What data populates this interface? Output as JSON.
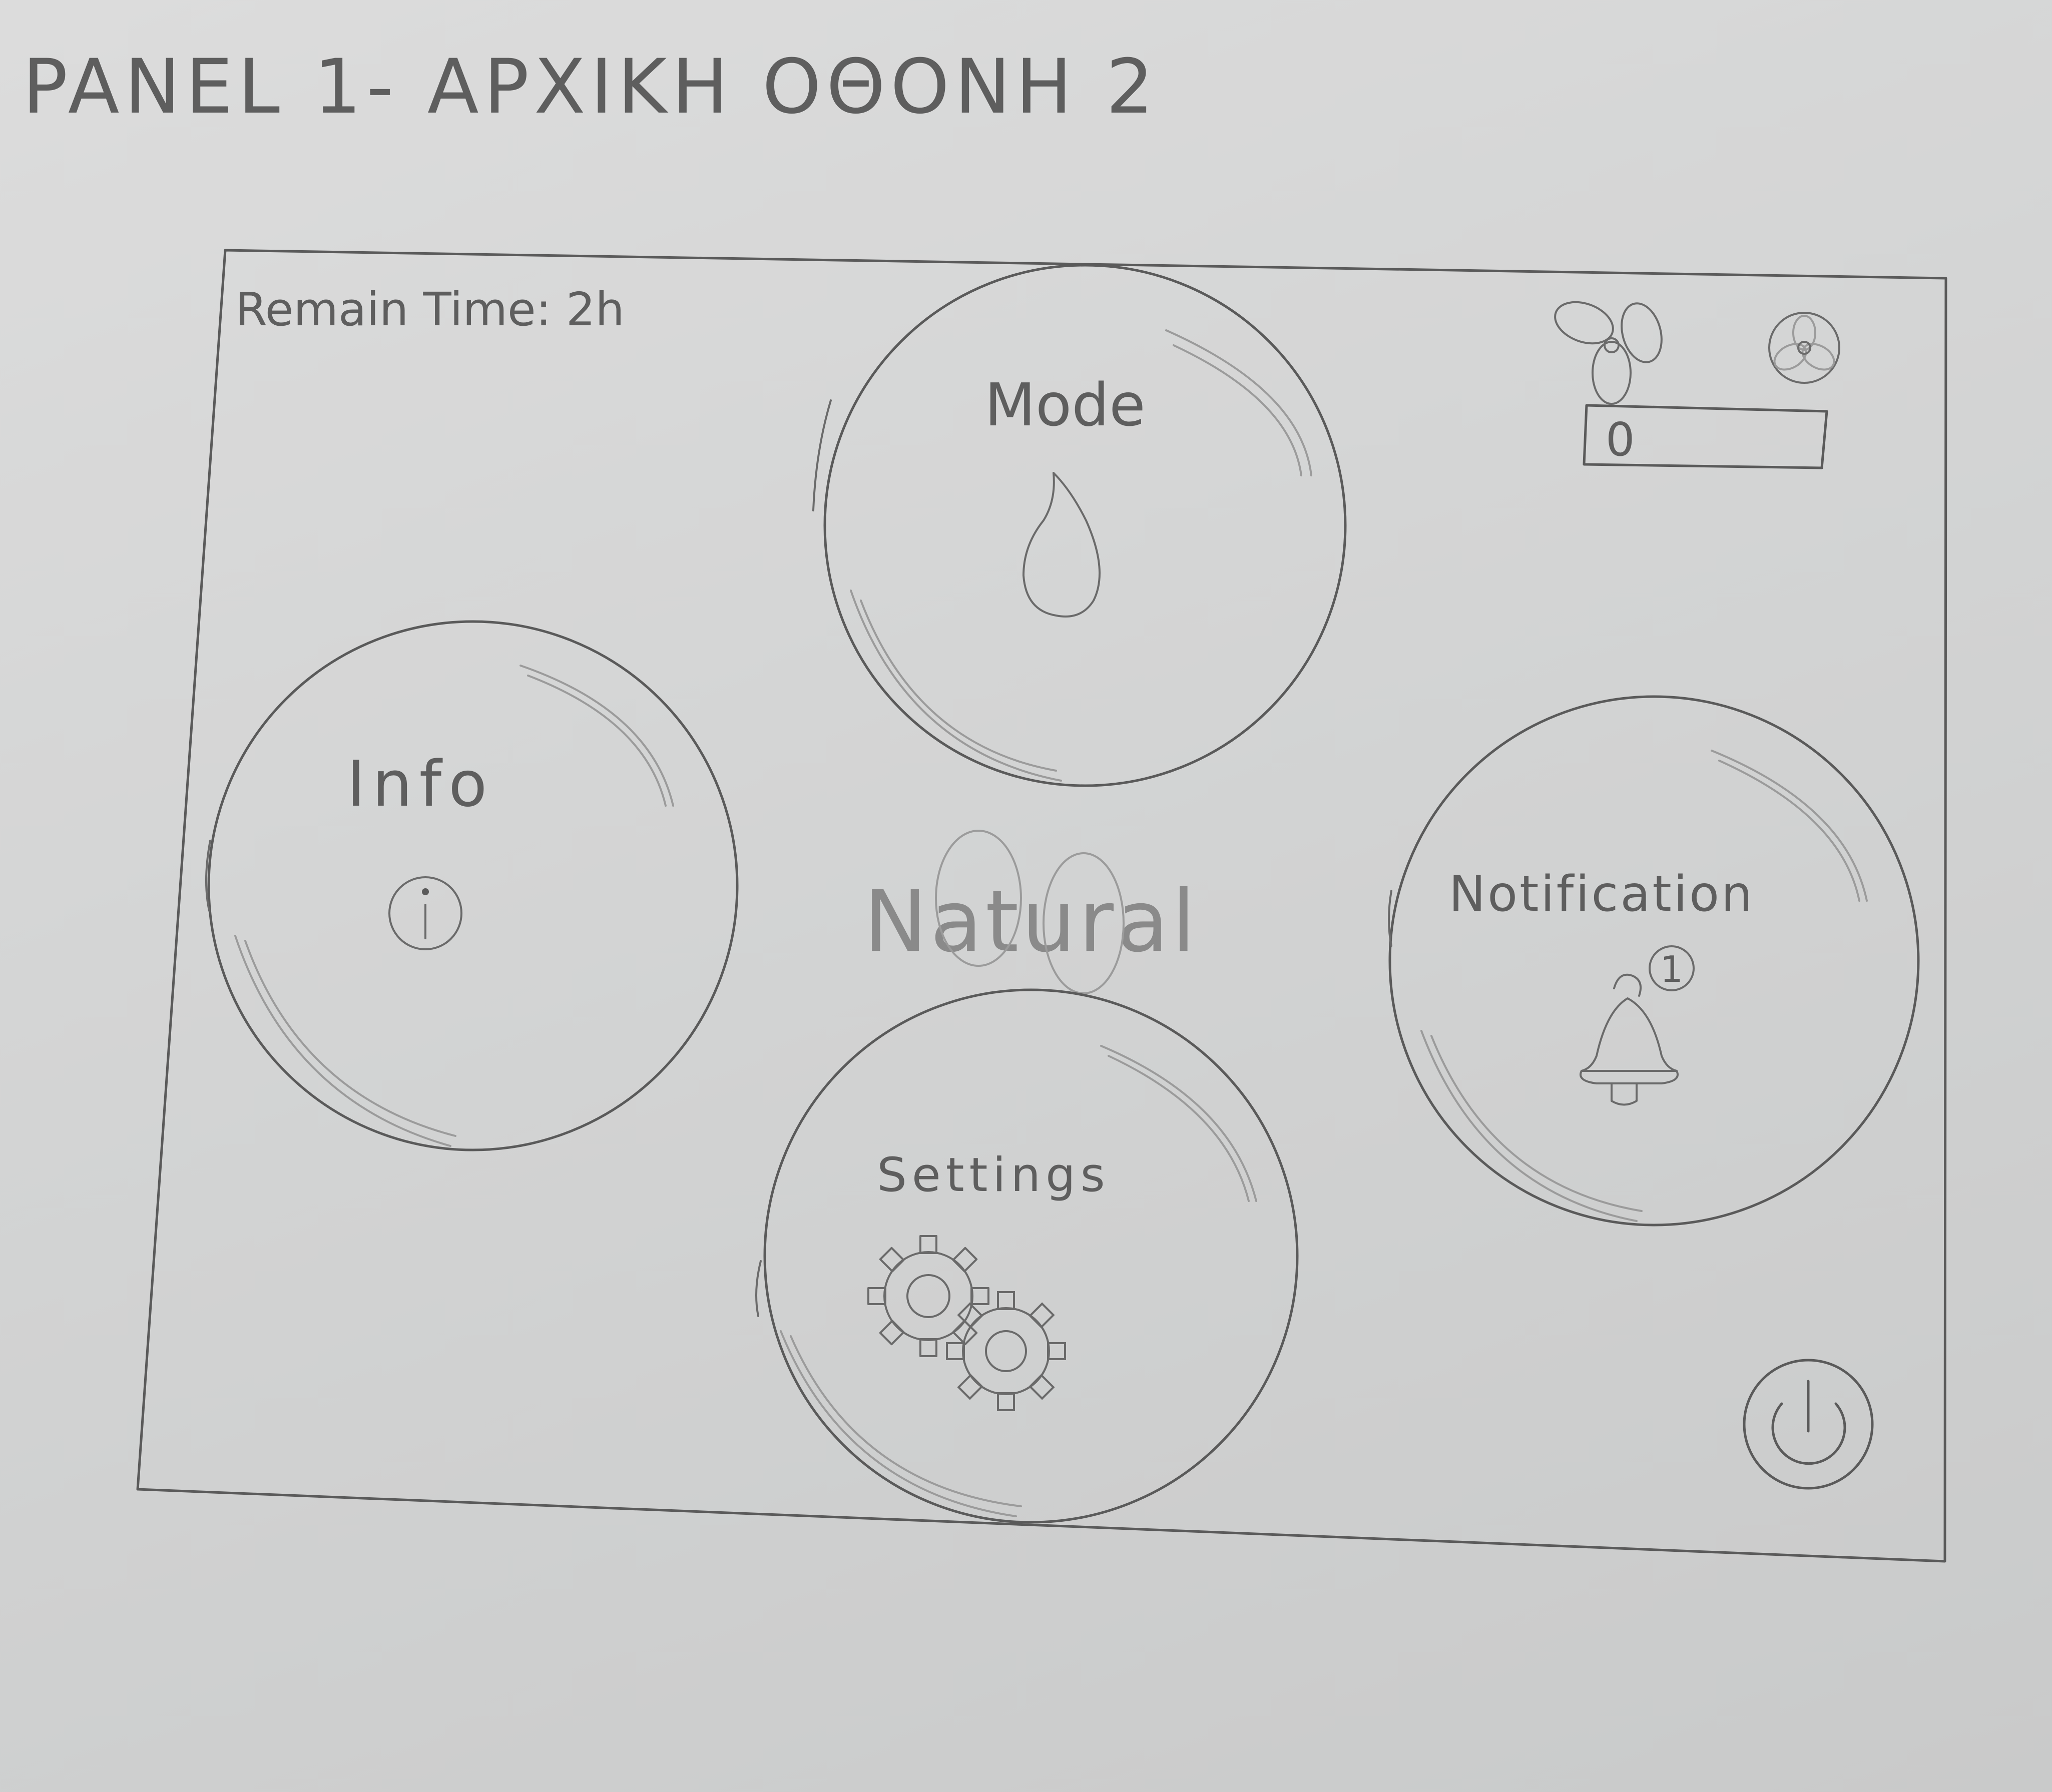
{
  "header": {
    "title": "PANEL 1- ΑΡΧΙΚΗ ΟΘΟΝΗ 2"
  },
  "status": {
    "remain_time": "Remain Time: 2h",
    "fan_speed_value": "0"
  },
  "center_label": "Natural",
  "buttons": {
    "mode": {
      "label": "Mode",
      "icon": "water-drop-icon"
    },
    "info": {
      "label": "Info",
      "icon": "info-icon"
    },
    "notification": {
      "label": "Notification",
      "icon": "bell-icon",
      "badge": "1"
    },
    "settings": {
      "label": "Settings",
      "icon": "gear-icon"
    }
  },
  "icons": {
    "fan": "fan-icon",
    "fan_alt": "fan-alt-icon",
    "power": "power-icon"
  }
}
